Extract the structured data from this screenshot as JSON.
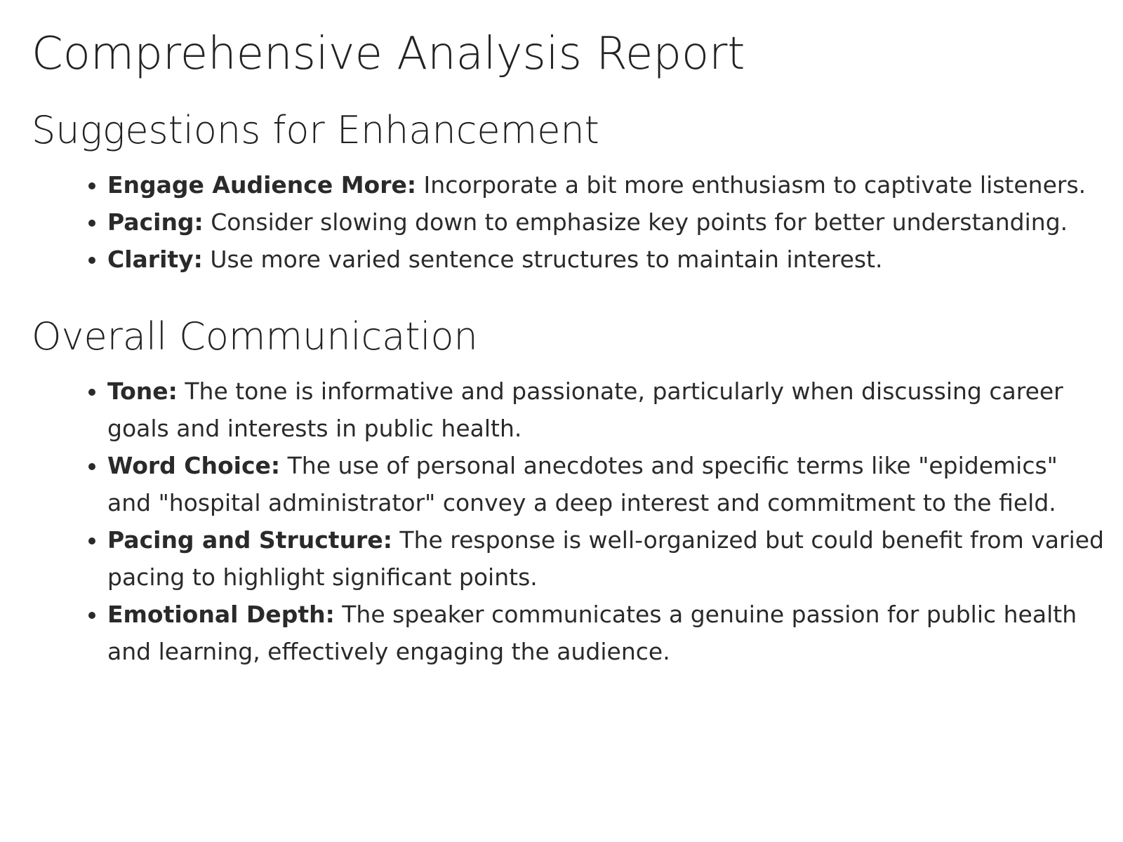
{
  "title": "Comprehensive Analysis Report",
  "sections": [
    {
      "heading": "Suggestions for Enhancement",
      "items": [
        {
          "label": "Engage Audience More:",
          "text": " Incorporate a bit more enthusiasm to captivate listeners."
        },
        {
          "label": "Pacing:",
          "text": " Consider slowing down to emphasize key points for better understanding."
        },
        {
          "label": "Clarity:",
          "text": " Use more varied sentence structures to maintain interest."
        }
      ]
    },
    {
      "heading": "Overall Communication",
      "items": [
        {
          "label": "Tone:",
          "text": " The tone is informative and passionate, particularly when discussing career goals and interests in public health."
        },
        {
          "label": "Word Choice:",
          "text": " The use of personal anecdotes and specific terms like \"epidemics\" and \"hospital administrator\" convey a deep interest and commitment to the field."
        },
        {
          "label": "Pacing and Structure:",
          "text": " The response is well-organized but could benefit from varied pacing to highlight significant points."
        },
        {
          "label": "Emotional Depth:",
          "text": " The speaker communicates a genuine passion for public health and learning, effectively engaging the audience."
        }
      ]
    }
  ]
}
